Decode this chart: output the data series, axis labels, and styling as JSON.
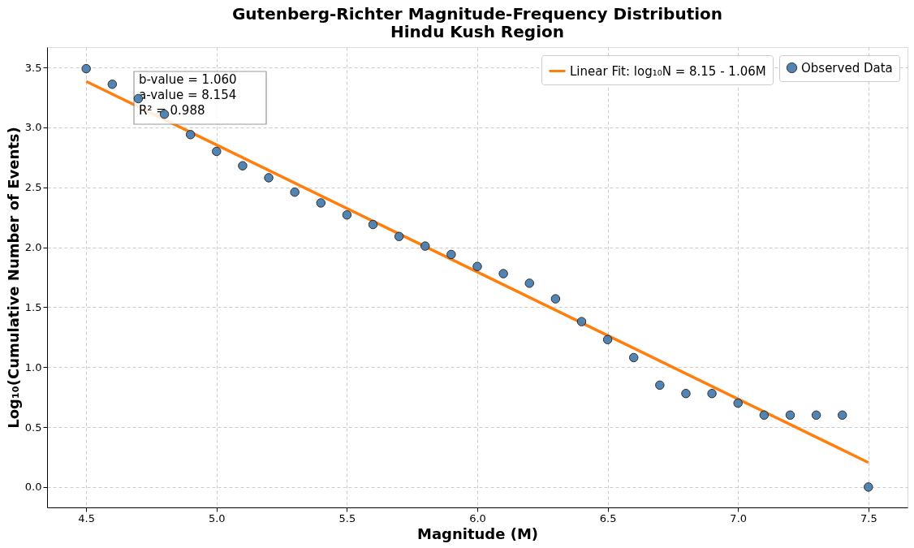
{
  "chart_data": {
    "type": "scatter",
    "title": "Gutenberg-Richter Magnitude-Frequency Distribution",
    "subtitle": "Hindu Kush Region",
    "xlabel": "Magnitude (M)",
    "ylabel": "Log₁₀(Cumulative Number of Events)",
    "x": [
      4.5,
      4.6,
      4.7,
      4.8,
      4.9,
      5.0,
      5.1,
      5.2,
      5.3,
      5.4,
      5.5,
      5.6,
      5.7,
      5.8,
      5.9,
      6.0,
      6.1,
      6.2,
      6.3,
      6.4,
      6.5,
      6.6,
      6.7,
      6.8,
      6.9,
      7.0,
      7.1,
      7.2,
      7.3,
      7.4,
      7.5
    ],
    "series": [
      {
        "name": "Observed Data",
        "marker": "circle",
        "color": "#4a7fb0",
        "values": [
          3.49,
          3.36,
          3.24,
          3.11,
          2.94,
          2.8,
          2.68,
          2.58,
          2.46,
          2.37,
          2.27,
          2.19,
          2.09,
          2.01,
          1.94,
          1.84,
          1.78,
          1.7,
          1.57,
          1.38,
          1.23,
          1.08,
          0.85,
          0.78,
          0.78,
          0.7,
          0.6,
          0.6,
          0.6,
          0.6,
          0.0
        ]
      },
      {
        "name": "Linear Fit: log₁₀N = 8.15 - 1.06M",
        "type": "line",
        "line_style": "solid",
        "color": "#ff7f0e",
        "x": [
          4.5,
          7.5
        ],
        "values": [
          3.384,
          0.204
        ]
      }
    ],
    "annotations": [
      "b-value = 1.060",
      "a-value = 8.154",
      "R² = 0.988"
    ],
    "xlim": [
      4.35,
      7.65
    ],
    "ylim": [
      -0.17,
      3.67
    ],
    "xticks": [
      4.5,
      {
        "value": 5,
        "label": "5.0"
      },
      5.5,
      {
        "value": 6,
        "label": "6.0"
      },
      6.5,
      {
        "value": 7,
        "label": "7.0"
      },
      7.5
    ],
    "yticks": [
      {
        "value": 0,
        "label": "0.0"
      },
      0.5,
      {
        "value": 1,
        "label": "1.0"
      },
      1.5,
      {
        "value": 2,
        "label": "2.0"
      },
      2.5,
      {
        "value": 3,
        "label": "3.0"
      },
      3.5
    ],
    "grid": true,
    "legend": "top right"
  }
}
